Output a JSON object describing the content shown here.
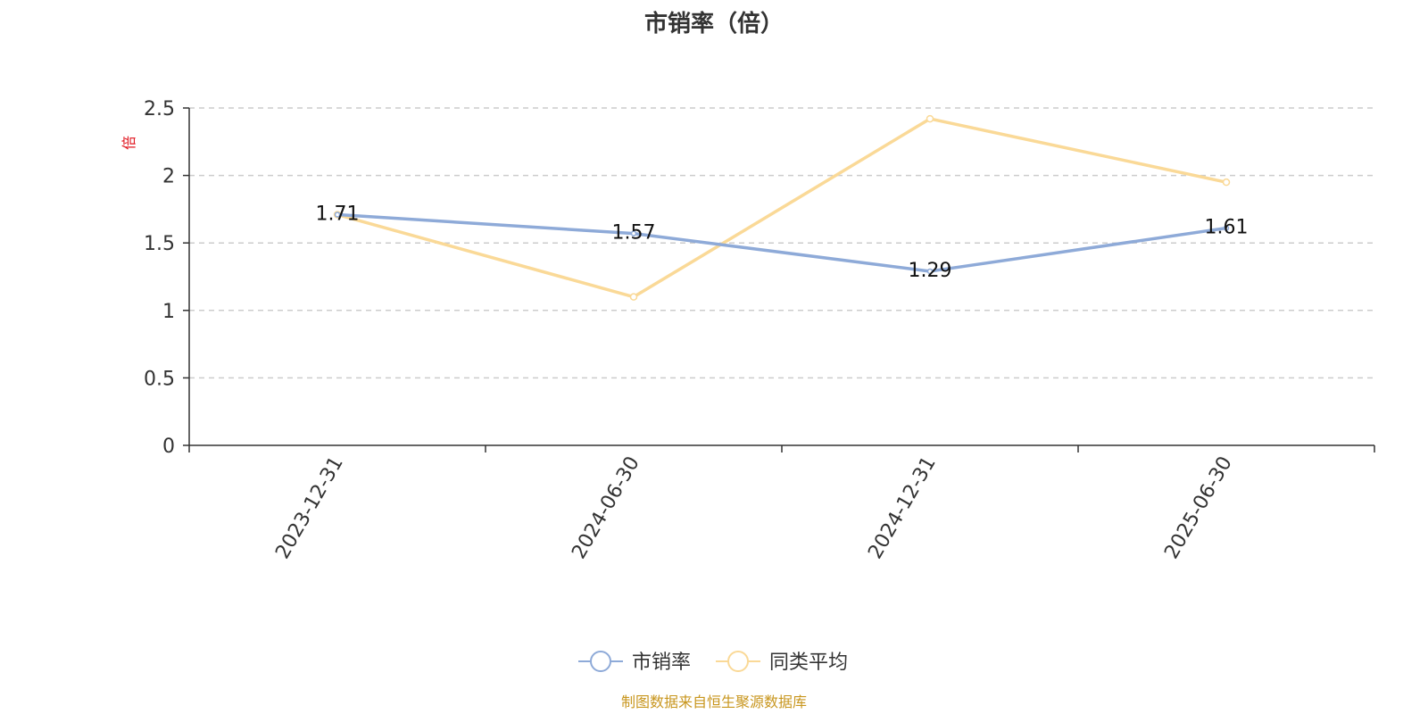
{
  "chart_data": {
    "type": "line",
    "title": "市销率（倍）",
    "ylabel": "倍",
    "ylabel_color": "#e0141e",
    "ylim": [
      0,
      2.5
    ],
    "yticks": [
      0,
      0.5,
      1,
      1.5,
      2,
      2.5
    ],
    "ytick_labels": [
      "0",
      "0.5",
      "1",
      "1.5",
      "2",
      "2.5"
    ],
    "grid": true,
    "categories": [
      "2023-12-31",
      "2024-06-30",
      "2024-12-31",
      "2025-06-30"
    ],
    "series": [
      {
        "name": "市销率",
        "color": "#8eaad8",
        "values": [
          1.71,
          1.57,
          1.29,
          1.61
        ],
        "labels": [
          "1.71",
          "1.57",
          "1.29",
          "1.61"
        ],
        "show_labels": true
      },
      {
        "name": "同类平均",
        "color": "#fad997",
        "values": [
          1.71,
          1.1,
          2.42,
          1.95
        ],
        "show_labels": false
      }
    ],
    "legend_position": "bottom-center"
  },
  "footer": {
    "source": "制图数据来自恒生聚源数据库",
    "source_color": "#c8961e"
  }
}
